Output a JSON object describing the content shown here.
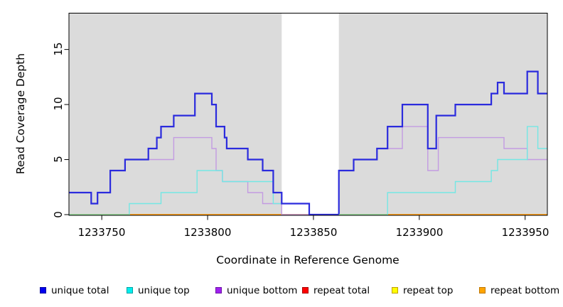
{
  "axes": {
    "x": {
      "title": "Coordinate in Reference Genome",
      "tick_labels": [
        "1233750",
        "1233800",
        "1233850",
        "1233900",
        "1233950"
      ]
    },
    "y": {
      "title": "Read Coverage Depth",
      "tick_labels": [
        "0",
        "5",
        "10",
        "15"
      ]
    }
  },
  "legend": {
    "items": [
      {
        "label": "unique total",
        "fill": "#0000F0",
        "border": "#0000A0"
      },
      {
        "label": "unique top",
        "fill": "#00EEEE",
        "border": "#00A3A3"
      },
      {
        "label": "unique bottom",
        "fill": "#A020F0",
        "border": "#6E16A6"
      },
      {
        "label": "repeat total",
        "fill": "#FF0000",
        "border": "#A80000"
      },
      {
        "label": "repeat top",
        "fill": "#FFFF00",
        "border": "#BFA000"
      },
      {
        "label": "repeat bottom",
        "fill": "#FFA500",
        "border": "#BF7700"
      }
    ]
  },
  "chart_data": {
    "type": "line",
    "subtype": "step",
    "title": "",
    "xlabel": "Coordinate in Reference Genome",
    "ylabel": "Read Coverage Depth",
    "x_range": [
      1233734.5,
      1233960.5
    ],
    "y_range": [
      0,
      18.3
    ],
    "x_ticks": [
      1233750,
      1233800,
      1233850,
      1233900,
      1233950
    ],
    "y_ticks": [
      0,
      5,
      10,
      15
    ],
    "grid": false,
    "legend_position": "bottom",
    "plot_background": "#DBDBDB",
    "masked_region": {
      "x1": 1233835,
      "x2": 1233862,
      "color": "#FFFFFF"
    },
    "draw_order": [
      "repeat total",
      "repeat top",
      "repeat bottom",
      "unique bottom",
      "unique top",
      "unique total"
    ],
    "series": [
      {
        "name": "unique total",
        "line_color": "#2B2BDD",
        "line_width": 2.2,
        "points": [
          [
            1233735,
            2
          ],
          [
            1233745,
            1
          ],
          [
            1233748,
            2
          ],
          [
            1233754,
            4
          ],
          [
            1233761,
            5
          ],
          [
            1233772,
            6
          ],
          [
            1233776,
            7
          ],
          [
            1233778,
            8
          ],
          [
            1233784,
            9
          ],
          [
            1233794,
            11
          ],
          [
            1233802,
            10
          ],
          [
            1233804,
            8
          ],
          [
            1233808,
            7
          ],
          [
            1233809,
            6
          ],
          [
            1233819,
            5
          ],
          [
            1233826,
            4
          ],
          [
            1233831,
            2
          ],
          [
            1233835,
            1
          ],
          [
            1233848,
            0
          ],
          [
            1233862,
            4
          ],
          [
            1233869,
            5
          ],
          [
            1233880,
            6
          ],
          [
            1233885,
            8
          ],
          [
            1233892,
            10
          ],
          [
            1233904,
            6
          ],
          [
            1233908,
            9
          ],
          [
            1233917,
            10
          ],
          [
            1233934,
            11
          ],
          [
            1233937,
            12
          ],
          [
            1233940,
            11
          ],
          [
            1233951,
            13
          ],
          [
            1233956,
            11
          ]
        ]
      },
      {
        "name": "unique top",
        "line_color": "#74E7E4",
        "line_width": 1.4,
        "points": [
          [
            1233735,
            0
          ],
          [
            1233763,
            1
          ],
          [
            1233778,
            2
          ],
          [
            1233795,
            4
          ],
          [
            1233807,
            3
          ],
          [
            1233831,
            1
          ],
          [
            1233848,
            0
          ],
          [
            1233885,
            2
          ],
          [
            1233917,
            3
          ],
          [
            1233934,
            4
          ],
          [
            1233937,
            5
          ],
          [
            1233951,
            8
          ],
          [
            1233956,
            6
          ]
        ]
      },
      {
        "name": "unique bottom",
        "line_color": "#C39BE2",
        "line_width": 1.4,
        "points": [
          [
            1233735,
            2
          ],
          [
            1233745,
            1
          ],
          [
            1233748,
            2
          ],
          [
            1233754,
            4
          ],
          [
            1233761,
            5
          ],
          [
            1233784,
            7
          ],
          [
            1233802,
            6
          ],
          [
            1233804,
            4
          ],
          [
            1233807,
            3
          ],
          [
            1233819,
            2
          ],
          [
            1233826,
            1
          ],
          [
            1233835,
            0
          ],
          [
            1233862,
            4
          ],
          [
            1233869,
            5
          ],
          [
            1233880,
            6
          ],
          [
            1233892,
            8
          ],
          [
            1233904,
            4
          ],
          [
            1233909,
            7
          ],
          [
            1233940,
            6
          ],
          [
            1233951,
            5
          ]
        ]
      },
      {
        "name": "repeat total",
        "line_color": "#DD0000",
        "line_width": 1.4,
        "points": [
          [
            1233735,
            0
          ]
        ]
      },
      {
        "name": "repeat top",
        "line_color": "#F2F20C",
        "line_width": 1.4,
        "points": [
          [
            1233735,
            0
          ]
        ]
      },
      {
        "name": "repeat bottom",
        "line_color": "#FF9E1B",
        "line_width": 1.7,
        "points": [
          [
            1233735,
            0
          ]
        ]
      }
    ],
    "zero_overlap_segments": {
      "color": "#8FD79B",
      "line_width": 1.5,
      "segments": [
        [
          1233735,
          1233763
        ],
        [
          1233862,
          1233885
        ]
      ],
      "note": "pale green blend where unique-top sits on the repeat lines at depth 0"
    }
  }
}
